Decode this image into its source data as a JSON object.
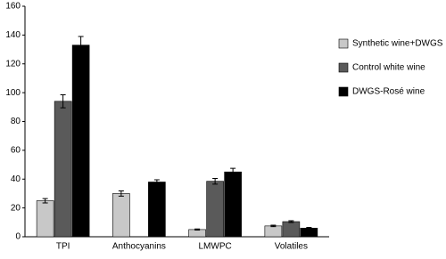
{
  "chart_data": {
    "type": "bar",
    "categories": [
      "TPI",
      "Anthocyanins",
      "LMWPC",
      "Volatiles"
    ],
    "series": [
      {
        "name": "Synthetic wine+DWGS",
        "color": "#c8c8c8",
        "values": [
          25,
          30,
          5,
          7.5
        ],
        "errors": [
          1.5,
          1.8,
          0.4,
          0.5
        ]
      },
      {
        "name": "Control white wine",
        "color": "#5a5a5a",
        "values": [
          94,
          null,
          38.5,
          10.5
        ],
        "errors": [
          4.5,
          null,
          2,
          0.6
        ]
      },
      {
        "name": "DWGS-Rosé wine",
        "color": "#000000",
        "values": [
          133,
          38,
          45,
          6
        ],
        "errors": [
          6,
          1.5,
          2.5,
          0.5
        ]
      }
    ],
    "ylim": [
      0,
      160
    ],
    "yticks": [
      0,
      20,
      40,
      60,
      80,
      100,
      120,
      140,
      160
    ],
    "legend": "right"
  }
}
